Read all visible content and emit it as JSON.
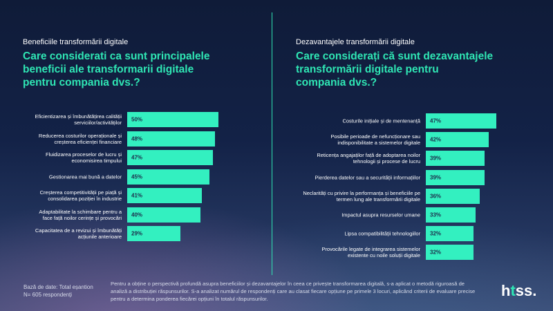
{
  "left": {
    "section_label": "Beneficiile transformării digitale",
    "question_lines": [
      "Care considerati ca sunt principalele",
      "beneficii ale transformarii digitale",
      "pentru compania dvs.?"
    ]
  },
  "right": {
    "section_label": "Dezavantajele transformării digitale",
    "question_lines": [
      "Care considerați că sunt dezavantajele",
      "transformării digitale pentru",
      "compania dvs.?"
    ]
  },
  "chart_data": [
    {
      "type": "bar",
      "orientation": "horizontal",
      "title": "",
      "categories": [
        [
          "Eficientizarea și îmbunătățirea calității",
          "serviciilor/activităților"
        ],
        [
          "Reducerea costurilor operaționale și",
          "creșterea eficienței financiare"
        ],
        [
          "Fluidizarea proceselor de lucru și",
          "economisirea timpului"
        ],
        [
          "Gestionarea mai bună a datelor"
        ],
        [
          "Creșterea competitivității pe piață și",
          "consolidarea poziției în industrie"
        ],
        [
          "Adaptabilitate la schimbare pentru a",
          "face față noilor cerințe și provocări"
        ],
        [
          "Capacitatea de a revizui și îmbunătăți",
          "acțiunile anterioare"
        ]
      ],
      "values": [
        50,
        48,
        47,
        45,
        41,
        40,
        29
      ],
      "value_labels": [
        "50%",
        "48%",
        "47%",
        "45%",
        "41%",
        "40%",
        "29%"
      ],
      "xlim": [
        0,
        50
      ],
      "grid": false,
      "bar_color": "#33f0c0"
    },
    {
      "type": "bar",
      "orientation": "horizontal",
      "title": "",
      "categories": [
        [
          "Costurile inițiale și de mentenanță"
        ],
        [
          "Posibile perioade de nefuncționare sau",
          "indisponibilitate a sistemelor digitale"
        ],
        [
          "Reticența angajaților față de adoptarea noilor",
          "tehnologii și procese de lucru"
        ],
        [
          "Pierderea datelor sau a securității informațiilor"
        ],
        [
          "Neclarități cu privire la performanța și beneficiile pe",
          "termen lung ale transformării digitale"
        ],
        [
          "Impactul asupra resurselor umane"
        ],
        [
          "Lipsa compatibilității tehnologiilor"
        ],
        [
          "Provocările legate de integrarea sistemelor",
          "existente cu noile soluții digitale"
        ]
      ],
      "values": [
        47,
        42,
        39,
        39,
        36,
        33,
        32,
        32
      ],
      "value_labels": [
        "47%",
        "42%",
        "39%",
        "39%",
        "36%",
        "33%",
        "32%",
        "32%"
      ],
      "xlim": [
        0,
        47
      ],
      "grid": false,
      "bar_color": "#33f0c0"
    }
  ],
  "footer": {
    "database_lines": [
      "Bază de date: Total eșantion",
      "N= 605 respondenți"
    ],
    "note": "Pentru a obține o perspectivă profundă asupra beneficiilor și dezavantajelor în ceea ce privește transformarea digitală, s-a aplicat o metodă riguroasă de analiză a distribuției răspunsurilor. S-a analizat numărul de respondenți care au clasat fiecare opțiune pe primele 3 locuri, aplicând criterii de evaluare precise pentru a determina ponderea fiecărei opțiuni în totalul răspunsurilor."
  },
  "logo": {
    "prefix": "h",
    "accent": "t",
    "suffix": "ss."
  }
}
